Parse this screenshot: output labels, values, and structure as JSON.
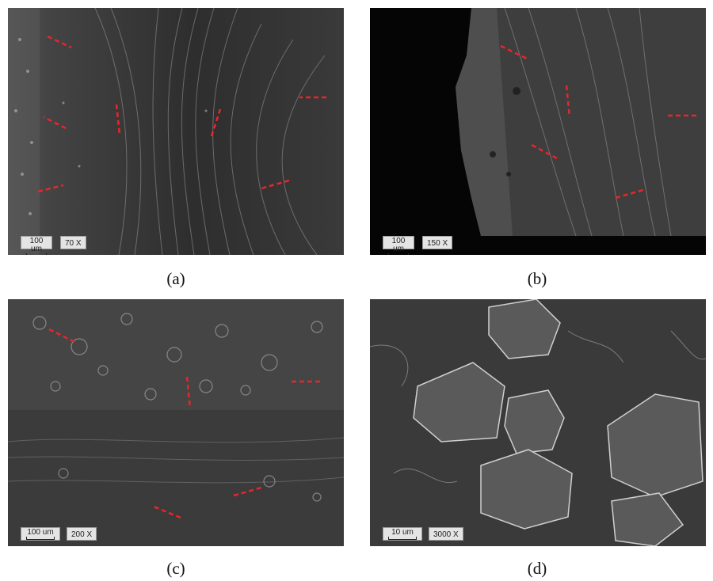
{
  "panels": [
    {
      "id": "a",
      "caption": "(a)",
      "scale_label": "100 um",
      "magnification": "70 X"
    },
    {
      "id": "b",
      "caption": "(b)",
      "scale_label": "100 um",
      "magnification": "150 X"
    },
    {
      "id": "c",
      "caption": "(c)",
      "scale_label": "100 um",
      "magnification": "200 X"
    },
    {
      "id": "d",
      "caption": "(d)",
      "scale_label": "10 um",
      "magnification": "3000 X"
    }
  ],
  "colors": {
    "arrow": "#e8262b",
    "sem_gray": "#3c3c3c",
    "background": "#ffffff"
  }
}
